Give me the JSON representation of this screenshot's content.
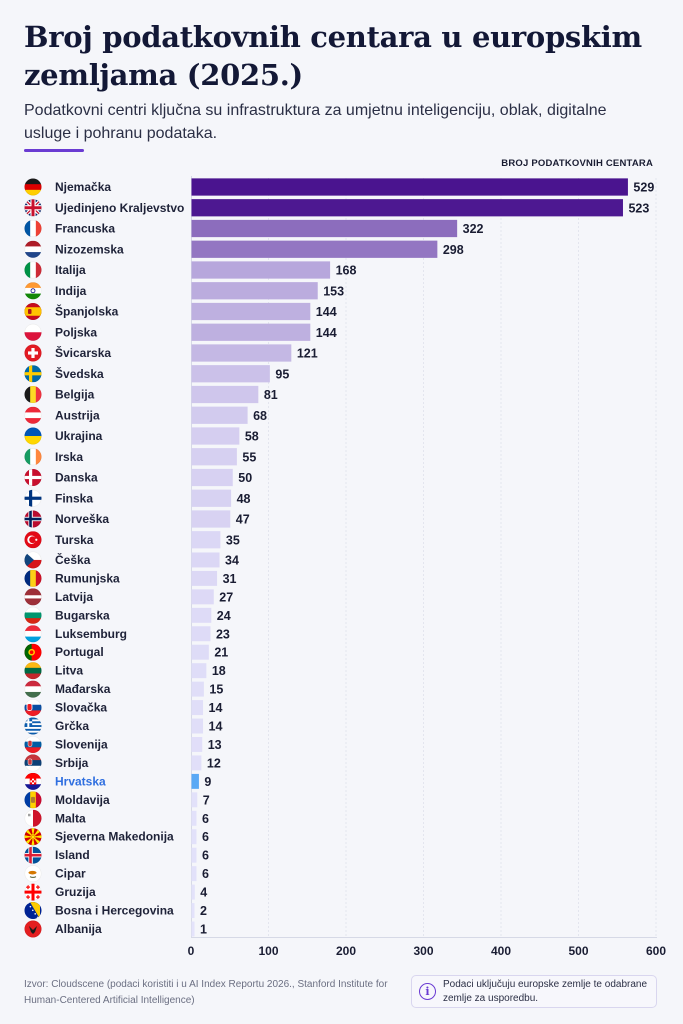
{
  "header": {
    "title": "Broj podatkovnih centara u europskim zemljama (2025.)",
    "subtitle": "Podatkovni centri ključna su infrastruktura za umjetnu inteligenciju, oblak, digitalne usluge i pohranu podataka.",
    "unit_label": "BROJ PODATKOVNIH CENTARA"
  },
  "footer": {
    "source_prefix": "Izvor:",
    "source_text": "Cloudscene (podaci koristiti i u AI Index Reportu 2026., Stanford Institute for Human-Centered Artificial Intelligence)",
    "note_icon": "info-icon",
    "note_text": "Podaci uključuju europske zemlje te odabrane zemlje za usporedbu."
  },
  "colors": {
    "bar_dark": "#4a148f",
    "bar_light": "#e4e3fb",
    "highlight": "#5aa9f5",
    "highlight_label": "#2f6fe0",
    "accent": "#6a3bd2"
  },
  "chart_data": {
    "type": "bar",
    "orientation": "horizontal",
    "title": "Broj podatkovnih centara u europskim zemljama (2025.)",
    "xlabel": "Broj podatkovnih centara",
    "ylabel": "",
    "xlim": [
      0,
      600
    ],
    "xticks": [
      0,
      100,
      200,
      300,
      400,
      500,
      600
    ],
    "grid": true,
    "highlighted_category": "Hrvatska",
    "categories": [
      "Njemačka",
      "Ujedinjeno Kraljevstvo",
      "Francuska",
      "Nizozemska",
      "Italija",
      "Indija",
      "Španjolska",
      "Poljska",
      "Švicarska",
      "Švedska",
      "Belgija",
      "Austrija",
      "Ukrajina",
      "Irska",
      "Danska",
      "Finska",
      "Norveška",
      "Turska",
      "Češka",
      "Rumunjska",
      "Latvija",
      "Bugarska",
      "Luksemburg",
      "Portugal",
      "Litva",
      "Mađarska",
      "Slovačka",
      "Grčka",
      "Slovenija",
      "Srbija",
      "Hrvatska",
      "Moldavija",
      "Malta",
      "Sjeverna Makedonija",
      "Island",
      "Cipar",
      "Gruzija",
      "Bosna i Hercegovina",
      "Albanija"
    ],
    "values": [
      529,
      523,
      322,
      298,
      168,
      153,
      144,
      144,
      121,
      95,
      81,
      68,
      58,
      55,
      50,
      48,
      47,
      35,
      34,
      31,
      27,
      24,
      23,
      21,
      18,
      15,
      14,
      14,
      13,
      12,
      9,
      7,
      6,
      6,
      6,
      6,
      4,
      2,
      1
    ],
    "flags": [
      "de",
      "gb",
      "fr",
      "nl",
      "it",
      "in",
      "es",
      "pl",
      "ch",
      "se",
      "be",
      "at",
      "ua",
      "ie",
      "dk",
      "fi",
      "no",
      "tr",
      "cz",
      "ro",
      "lv",
      "bg",
      "lu",
      "pt",
      "lt",
      "hu",
      "sk",
      "gr",
      "si",
      "rs",
      "hr",
      "md",
      "mt",
      "mk",
      "is",
      "cy",
      "ge",
      "ba",
      "al"
    ]
  }
}
